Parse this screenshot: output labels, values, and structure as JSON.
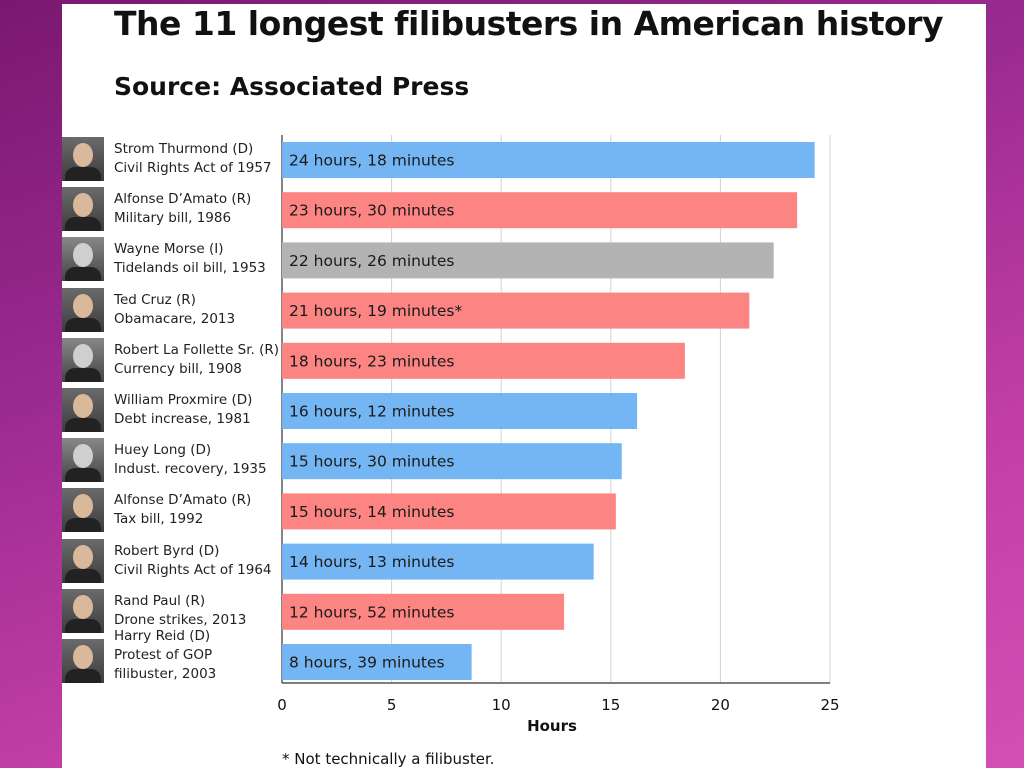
{
  "title": "The 11 longest filibusters in American history",
  "subtitle": "Source: Associated Press",
  "footnote": "* Not technically a filibuster.",
  "colors": {
    "D": "#74b6f4",
    "R": "#fc8584",
    "I": "#b3b3b3"
  },
  "rows": [
    {
      "name": "Strom Thurmond (D)",
      "desc": "Civil Rights Act of 1957",
      "party": "D"
    },
    {
      "name": "Alfonse D’Amato (R)",
      "desc": "Military bill, 1986",
      "party": "R"
    },
    {
      "name": "Wayne Morse (I)",
      "desc": "Tidelands oil bill, 1953",
      "party": "I"
    },
    {
      "name": "Ted Cruz (R)",
      "desc": "Obamacare, 2013",
      "party": "R"
    },
    {
      "name": "Robert La Follette Sr. (R)",
      "desc": "Currency bill, 1908",
      "party": "R"
    },
    {
      "name": "William Proxmire (D)",
      "desc": "Debt increase, 1981",
      "party": "D"
    },
    {
      "name": "Huey Long (D)",
      "desc": "Indust. recovery, 1935",
      "party": "D"
    },
    {
      "name": "Alfonse D’Amato (R)",
      "desc": "Tax bill, 1992",
      "party": "R"
    },
    {
      "name": "Robert Byrd (D)",
      "desc": "Civil Rights Act of 1964",
      "party": "D"
    },
    {
      "name": "Rand Paul (R)",
      "desc": "Drone strikes, 2013",
      "party": "R"
    },
    {
      "name": "Harry Reid (D)",
      "desc": "Protest of GOP filibuster, 2003",
      "desc_lines": [
        "Protest of GOP",
        "filibuster, 2003"
      ],
      "party": "D"
    }
  ],
  "chart_data": {
    "type": "bar",
    "orientation": "horizontal",
    "categories": [
      "Strom Thurmond (D)",
      "Alfonse D’Amato (R)",
      "Wayne Morse (I)",
      "Ted Cruz (R)",
      "Robert La Follette Sr. (R)",
      "William Proxmire (D)",
      "Huey Long (D)",
      "Alfonse D’Amato (R)",
      "Robert Byrd (D)",
      "Rand Paul (R)",
      "Harry Reid (D)"
    ],
    "values": [
      24.3,
      23.5,
      22.43,
      21.32,
      18.38,
      16.2,
      15.5,
      15.23,
      14.22,
      12.87,
      8.65
    ],
    "data_labels": [
      "24 hours, 18 minutes",
      "23 hours, 30 minutes",
      "22 hours, 26 minutes",
      "21 hours, 19 minutes*",
      "18 hours, 23 minutes",
      "16 hours, 12 minutes",
      "15 hours, 30 minutes",
      "15 hours, 14 minutes",
      "14 hours, 13 minutes",
      "12 hours, 52 minutes",
      "8 hours, 39 minutes"
    ],
    "xlabel": "Hours",
    "xlim": [
      0,
      25
    ],
    "xticks": [
      0,
      5,
      10,
      15,
      20,
      25
    ],
    "grid": "vertical"
  }
}
